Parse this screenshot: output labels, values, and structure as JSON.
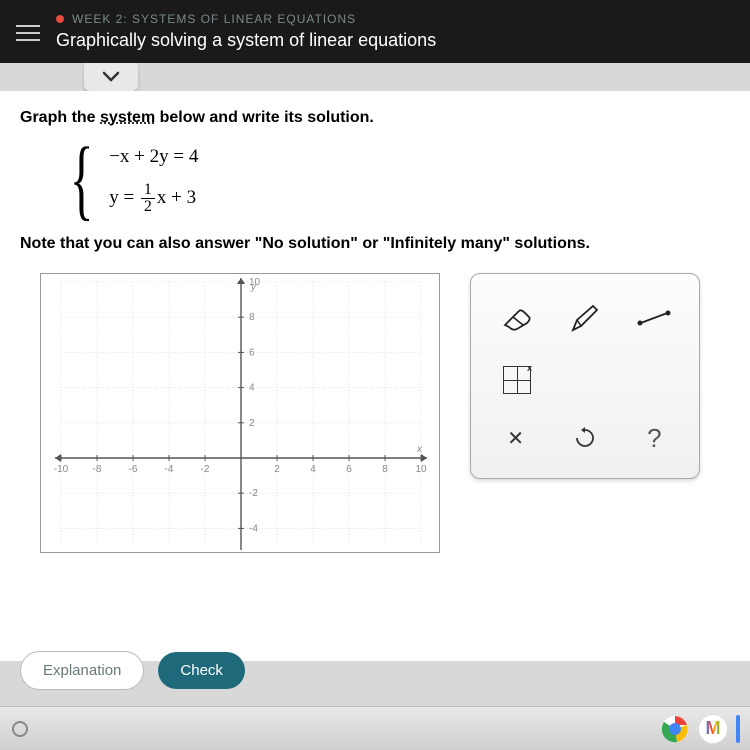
{
  "header": {
    "breadcrumb": "WEEK 2: SYSTEMS OF LINEAR EQUATIONS",
    "title": "Graphically solving a system of linear equations"
  },
  "problem": {
    "instruction_pre": "Graph the ",
    "instruction_underlined": "system",
    "instruction_post": " below and write its solution.",
    "equation1": "−x + 2y = 4",
    "equation2_lhs": "y = ",
    "equation2_frac_num": "1",
    "equation2_frac_den": "2",
    "equation2_rhs": "x + 3",
    "note": "Note that you can also answer \"No solution\" or \"Infinitely many\" solutions."
  },
  "graph": {
    "type": "cartesian-grid",
    "xlim": [
      -10,
      10
    ],
    "ylim": [
      -10,
      10
    ],
    "tick_step": 2,
    "x_axis_label": "x",
    "y_axis_label": "y",
    "y_tick_labels": [
      "10",
      "8",
      "6",
      "4",
      "2",
      "-2",
      "-4"
    ],
    "x_tick_labels": [
      "-10",
      "-8",
      "-6",
      "-4",
      "-2",
      "2",
      "4",
      "6",
      "8",
      "10"
    ],
    "visible_y_range": [
      -5,
      10
    ],
    "grid_color": "#d0d0d0",
    "axis_color": "#555555",
    "label_color": "#888888",
    "background": "#ffffff"
  },
  "tools": {
    "row1": [
      "eraser-icon",
      "pencil-icon",
      "line-icon"
    ],
    "row2_left": "grid-tool-icon",
    "row3": [
      {
        "name": "close-icon",
        "label": "✕"
      },
      {
        "name": "undo-icon",
        "label": "↺"
      },
      {
        "name": "help-icon",
        "label": "?"
      }
    ]
  },
  "buttons": {
    "explanation": "Explanation",
    "check": "Check"
  },
  "taskbar": {
    "chrome_colors": [
      "#ea4335",
      "#fbbc05",
      "#34a853",
      "#4285f4"
    ],
    "gmail_char": "M"
  }
}
